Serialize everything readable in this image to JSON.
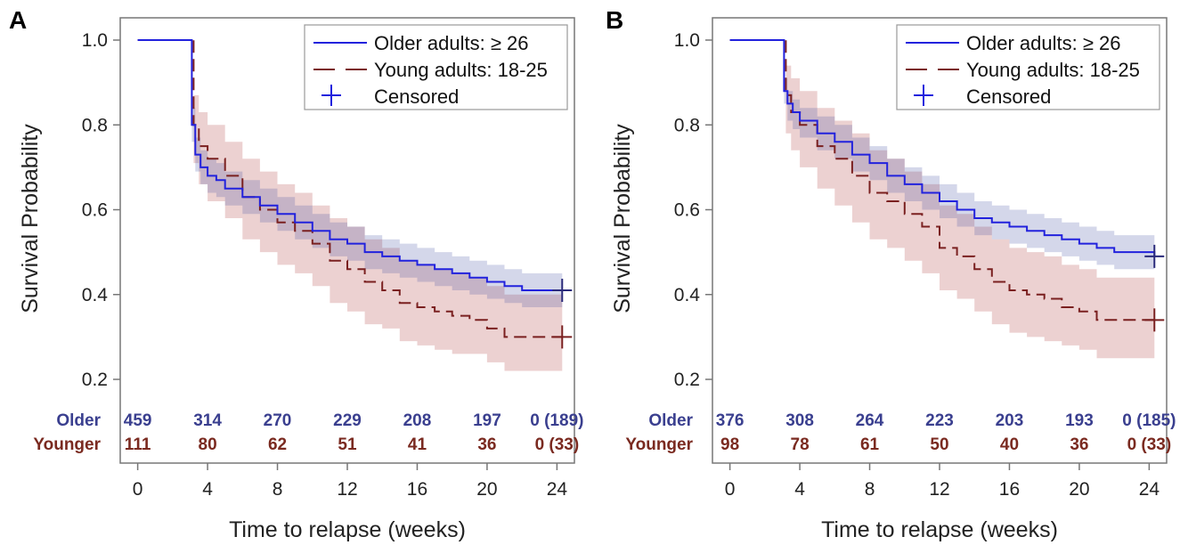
{
  "colors": {
    "older": "#2222dd",
    "young": "#7a2020",
    "older_band": "#3a4aa0",
    "young_band": "#c87a7a",
    "older_text": "#3a3f8f",
    "young_text": "#7a2a20",
    "censor_marker": "#2a2a7a",
    "axis": "#777777"
  },
  "chart_data": [
    {
      "panel": "A",
      "type": "line",
      "xlabel": "Time to relapse (weeks)",
      "ylabel": "Survival Probability",
      "xlim": [
        -1,
        25
      ],
      "ylim": [
        0.15,
        1.02
      ],
      "xticks": [
        "0",
        "4",
        "8",
        "12",
        "16",
        "20",
        "24"
      ],
      "yticks": [
        "0.2",
        "0.4",
        "0.6",
        "0.8",
        "1.0"
      ],
      "legend": {
        "position": "top-right",
        "entries": [
          "Older adults: ≥ 26",
          "Young adults: 18-25",
          "Censored"
        ]
      },
      "series": [
        {
          "name": "Older adults: ≥ 26",
          "style": "solid",
          "x": [
            0,
            3.0,
            3.1,
            3.3,
            3.6,
            4.0,
            4.5,
            5.0,
            6.0,
            7.0,
            8.0,
            9.0,
            10.0,
            11.0,
            12.0,
            13.0,
            14.0,
            15.0,
            16.0,
            17.0,
            18.0,
            19.0,
            20.0,
            21.0,
            22.0,
            24.3
          ],
          "y": [
            1.0,
            1.0,
            0.8,
            0.73,
            0.7,
            0.68,
            0.67,
            0.65,
            0.63,
            0.61,
            0.59,
            0.57,
            0.55,
            0.53,
            0.52,
            0.5,
            0.49,
            0.48,
            0.47,
            0.46,
            0.45,
            0.44,
            0.43,
            0.42,
            0.41,
            0.41
          ],
          "lower": [
            1.0,
            1.0,
            0.76,
            0.69,
            0.66,
            0.64,
            0.63,
            0.61,
            0.59,
            0.57,
            0.55,
            0.53,
            0.51,
            0.49,
            0.48,
            0.46,
            0.45,
            0.44,
            0.43,
            0.42,
            0.41,
            0.4,
            0.39,
            0.38,
            0.37,
            0.37
          ],
          "upper": [
            1.0,
            1.0,
            0.84,
            0.77,
            0.74,
            0.72,
            0.71,
            0.69,
            0.67,
            0.65,
            0.63,
            0.61,
            0.59,
            0.57,
            0.56,
            0.54,
            0.53,
            0.52,
            0.51,
            0.5,
            0.49,
            0.48,
            0.47,
            0.46,
            0.45,
            0.45
          ],
          "censored": [
            [
              24.3,
              0.41
            ]
          ]
        },
        {
          "name": "Young adults: 18-25",
          "style": "dashed",
          "x": [
            0,
            3.0,
            3.2,
            3.5,
            4.0,
            5.0,
            6.0,
            7.0,
            8.0,
            9.0,
            10.0,
            11.0,
            12.0,
            13.0,
            14.0,
            15.0,
            16.0,
            17.0,
            18.0,
            19.0,
            20.0,
            21.0,
            22.0,
            24.3
          ],
          "y": [
            1.0,
            1.0,
            0.8,
            0.75,
            0.72,
            0.68,
            0.63,
            0.6,
            0.57,
            0.55,
            0.52,
            0.48,
            0.46,
            0.43,
            0.41,
            0.38,
            0.37,
            0.36,
            0.35,
            0.34,
            0.32,
            0.3,
            0.3,
            0.3
          ],
          "lower": [
            1.0,
            1.0,
            0.71,
            0.66,
            0.62,
            0.58,
            0.53,
            0.5,
            0.47,
            0.45,
            0.42,
            0.38,
            0.36,
            0.33,
            0.32,
            0.29,
            0.28,
            0.27,
            0.26,
            0.26,
            0.24,
            0.22,
            0.22,
            0.22
          ],
          "upper": [
            1.0,
            1.0,
            0.87,
            0.83,
            0.8,
            0.76,
            0.72,
            0.69,
            0.66,
            0.64,
            0.61,
            0.58,
            0.56,
            0.53,
            0.51,
            0.48,
            0.47,
            0.46,
            0.45,
            0.44,
            0.42,
            0.4,
            0.4,
            0.4
          ],
          "censored": [
            [
              24.3,
              0.3
            ]
          ]
        }
      ],
      "risk_table": {
        "at_x": [
          0,
          4,
          8,
          12,
          16,
          20,
          24
        ],
        "rows": [
          {
            "label": "Older",
            "values": [
              "459",
              "314",
              "270",
              "229",
              "208",
              "197",
              "0 (189)"
            ]
          },
          {
            "label": "Younger",
            "values": [
              "111",
              "80",
              "62",
              "51",
              "41",
              "36",
              "0 (33)"
            ]
          }
        ]
      }
    },
    {
      "panel": "B",
      "type": "line",
      "xlabel": "Time to relapse (weeks)",
      "ylabel": "Survival Probability",
      "xlim": [
        -1,
        25
      ],
      "ylim": [
        0.15,
        1.02
      ],
      "xticks": [
        "0",
        "4",
        "8",
        "12",
        "16",
        "20",
        "24"
      ],
      "yticks": [
        "0.2",
        "0.4",
        "0.6",
        "0.8",
        "1.0"
      ],
      "legend": {
        "position": "top-right",
        "entries": [
          "Older adults: ≥ 26",
          "Young adults: 18-25",
          "Censored"
        ]
      },
      "series": [
        {
          "name": "Older adults: ≥ 26",
          "style": "solid",
          "x": [
            0,
            3.0,
            3.1,
            3.3,
            3.6,
            4.0,
            5.0,
            6.0,
            7.0,
            8.0,
            9.0,
            10.0,
            11.0,
            12.0,
            13.0,
            14.0,
            15.0,
            16.0,
            17.0,
            18.0,
            19.0,
            20.0,
            21.0,
            22.0,
            24.3
          ],
          "y": [
            1.0,
            1.0,
            0.88,
            0.85,
            0.83,
            0.81,
            0.78,
            0.76,
            0.73,
            0.71,
            0.68,
            0.66,
            0.64,
            0.62,
            0.6,
            0.58,
            0.57,
            0.56,
            0.55,
            0.54,
            0.53,
            0.52,
            0.51,
            0.5,
            0.49
          ],
          "lower": [
            1.0,
            1.0,
            0.85,
            0.81,
            0.79,
            0.77,
            0.74,
            0.72,
            0.69,
            0.67,
            0.64,
            0.62,
            0.6,
            0.58,
            0.56,
            0.54,
            0.53,
            0.52,
            0.51,
            0.5,
            0.49,
            0.48,
            0.47,
            0.46,
            0.45
          ],
          "upper": [
            1.0,
            1.0,
            0.91,
            0.88,
            0.86,
            0.84,
            0.82,
            0.8,
            0.77,
            0.75,
            0.72,
            0.7,
            0.68,
            0.66,
            0.64,
            0.62,
            0.61,
            0.6,
            0.59,
            0.58,
            0.57,
            0.56,
            0.55,
            0.54,
            0.53
          ],
          "censored": [
            [
              24.3,
              0.49
            ]
          ]
        },
        {
          "name": "Young adults: 18-25",
          "style": "dashed",
          "x": [
            0,
            3.0,
            3.2,
            3.5,
            4.0,
            5.0,
            6.0,
            7.0,
            8.0,
            9.0,
            10.0,
            11.0,
            12.0,
            13.0,
            14.0,
            15.0,
            16.0,
            17.0,
            18.0,
            19.0,
            20.0,
            21.0,
            22.0,
            24.3
          ],
          "y": [
            1.0,
            1.0,
            0.87,
            0.83,
            0.8,
            0.75,
            0.72,
            0.68,
            0.64,
            0.62,
            0.59,
            0.56,
            0.51,
            0.49,
            0.46,
            0.43,
            0.41,
            0.4,
            0.39,
            0.37,
            0.36,
            0.34,
            0.34,
            0.34
          ],
          "lower": [
            1.0,
            1.0,
            0.78,
            0.74,
            0.7,
            0.65,
            0.61,
            0.57,
            0.53,
            0.51,
            0.48,
            0.45,
            0.41,
            0.39,
            0.36,
            0.33,
            0.31,
            0.3,
            0.29,
            0.28,
            0.27,
            0.25,
            0.25,
            0.25
          ],
          "upper": [
            1.0,
            1.0,
            0.94,
            0.91,
            0.88,
            0.84,
            0.81,
            0.78,
            0.74,
            0.72,
            0.69,
            0.66,
            0.61,
            0.59,
            0.56,
            0.53,
            0.51,
            0.5,
            0.49,
            0.47,
            0.46,
            0.44,
            0.44,
            0.44
          ],
          "censored": [
            [
              24.3,
              0.34
            ]
          ]
        }
      ],
      "risk_table": {
        "at_x": [
          0,
          4,
          8,
          12,
          16,
          20,
          24
        ],
        "rows": [
          {
            "label": "Older",
            "values": [
              "376",
              "308",
              "264",
              "223",
              "203",
              "193",
              "0 (185)"
            ]
          },
          {
            "label": "Younger",
            "values": [
              "98",
              "78",
              "61",
              "50",
              "40",
              "36",
              "0 (33)"
            ]
          }
        ]
      }
    }
  ]
}
